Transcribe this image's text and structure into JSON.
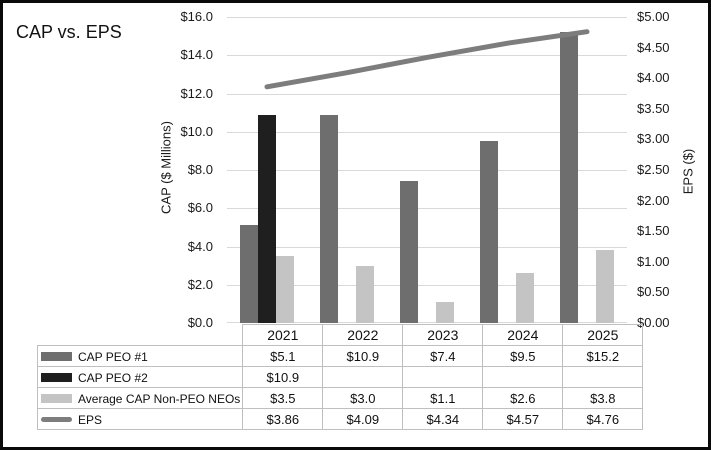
{
  "title": "CAP vs. EPS",
  "chart_data": {
    "type": "combo-bar-line",
    "categories": [
      "2021",
      "2022",
      "2023",
      "2024",
      "2025"
    ],
    "series": [
      {
        "name": "CAP PEO #1",
        "type": "bar",
        "color": "#6e6e6e",
        "axis": "left",
        "values": [
          5.1,
          10.9,
          7.4,
          9.5,
          15.2
        ],
        "cell_labels": [
          "$5.1",
          "$10.9",
          "$7.4",
          "$9.5",
          "$15.2"
        ]
      },
      {
        "name": "CAP PEO #2",
        "type": "bar",
        "color": "#1f1f1f",
        "axis": "left",
        "values": [
          10.9,
          null,
          null,
          null,
          null
        ],
        "cell_labels": [
          "$10.9",
          "",
          "",
          "",
          ""
        ]
      },
      {
        "name": "Average CAP Non-PEO NEOs",
        "type": "bar",
        "color": "#c4c4c4",
        "axis": "left",
        "values": [
          3.5,
          3.0,
          1.1,
          2.6,
          3.8
        ],
        "cell_labels": [
          "$3.5",
          "$3.0",
          "$1.1",
          "$2.6",
          "$3.8"
        ]
      },
      {
        "name": "EPS",
        "type": "line",
        "color": "#7d7d7d",
        "axis": "right",
        "values": [
          3.86,
          4.09,
          4.34,
          4.57,
          4.76
        ],
        "cell_labels": [
          "$3.86",
          "$4.09",
          "$4.34",
          "$4.57",
          "$4.76"
        ]
      }
    ],
    "left_axis": {
      "title": "CAP ($ Millions)",
      "min": 0,
      "max": 16,
      "step": 2,
      "ticks": [
        "$16.0",
        "$14.0",
        "$12.0",
        "$10.0",
        "$8.0",
        "$6.0",
        "$4.0",
        "$2.0",
        "$0.0"
      ]
    },
    "right_axis": {
      "title": "EPS ($)",
      "min": 0,
      "max": 5,
      "step": 0.5,
      "ticks": [
        "$5.00",
        "$4.50",
        "$4.00",
        "$3.50",
        "$3.00",
        "$2.50",
        "$2.00",
        "$1.50",
        "$1.00",
        "$0.50",
        "$0.00"
      ]
    },
    "grid": "horizontal-only",
    "legend_position": "data-table-left-column",
    "colors": {
      "gridline": "#d9d9d9",
      "table_border": "#bfbfbf",
      "frame_border": "#0a0a0a"
    }
  }
}
